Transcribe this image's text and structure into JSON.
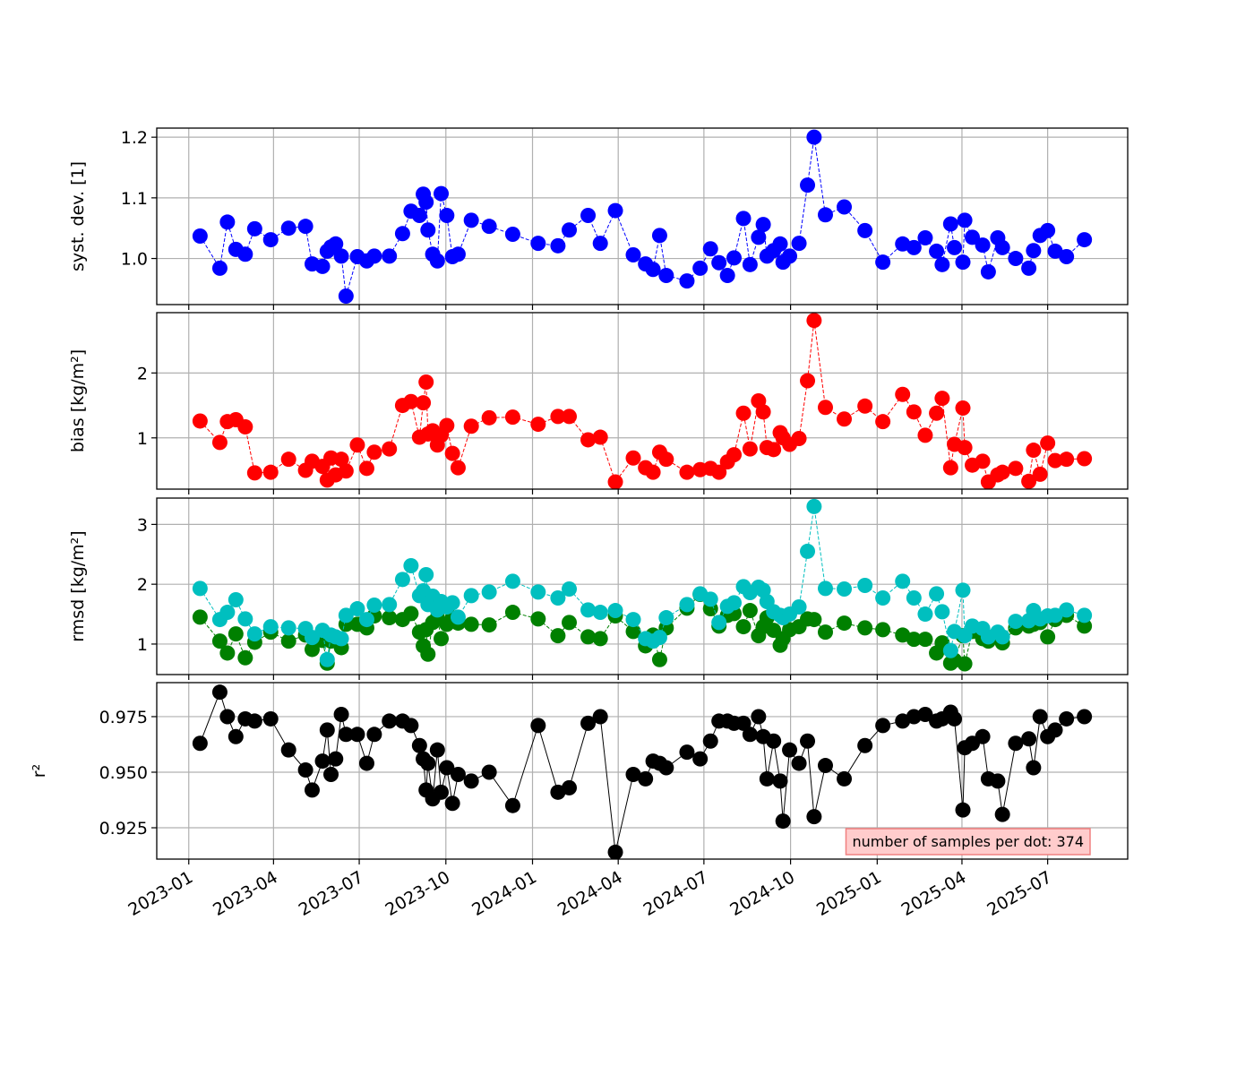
{
  "chart_data": [
    {
      "type": "line",
      "ylabel": "syst. dev. [1]",
      "ylim": [
        0.924,
        1.215
      ],
      "yticks": [
        {
          "value": 1,
          "label": "1.0"
        },
        1.1,
        1.2
      ],
      "grid": true,
      "series": [
        {
          "color": "#0000ff",
          "linestyle": "dashed",
          "values": [
            1.037,
            0.984,
            1.06,
            1.015,
            1.007,
            1.049,
            1.031,
            1.05,
            1.053,
            0.991,
            0.987,
            1.012,
            1.019,
            1.024,
            1.004,
            0.938,
            1.003,
            0.996,
            1.004,
            1.004,
            1.041,
            1.078,
            1.071,
            1.106,
            1.093,
            1.047,
            1.007,
            0.996,
            1.107,
            1.071,
            1.003,
            1.007,
            1.063,
            1.053,
            1.04,
            1.025,
            1.021,
            1.047,
            1.071,
            1.025,
            1.079,
            1.006,
            0.991,
            0.982,
            1.038,
            0.972,
            0.963,
            0.984,
            1.016,
            0.993,
            0.972,
            1.001,
            1.066,
            0.99,
            1.035,
            1.056,
            1.004,
            1.013,
            1.024,
            0.994,
            1.004,
            1.025,
            1.121,
            1.2,
            1.072,
            1.085,
            1.046,
            0.994,
            1.024,
            1.018,
            1.034,
            1.012,
            0.99,
            1.057,
            1.018,
            0.994,
            1.063,
            1.035,
            1.022,
            0.978,
            1.034,
            1.018,
            1.0,
            0.984,
            1.013,
            1.038,
            1.046,
            1.012,
            1.003,
            1.031
          ]
        }
      ]
    },
    {
      "type": "line",
      "ylabel": "bias [kg/m²]",
      "ylim": [
        0.21,
        2.93
      ],
      "yticks": [
        1,
        2
      ],
      "grid": true,
      "series": [
        {
          "color": "#ff0000",
          "linestyle": "dashed",
          "values": [
            1.26,
            0.93,
            1.25,
            1.28,
            1.17,
            0.46,
            0.47,
            0.67,
            0.5,
            0.64,
            0.56,
            0.35,
            0.69,
            0.43,
            0.67,
            0.49,
            0.89,
            0.53,
            0.78,
            0.83,
            1.5,
            1.56,
            1.01,
            1.54,
            1.86,
            1.06,
            1.11,
            0.89,
            1.04,
            1.19,
            0.76,
            0.54,
            1.18,
            1.31,
            1.32,
            1.21,
            1.33,
            1.33,
            0.97,
            1.01,
            0.32,
            0.69,
            0.54,
            0.47,
            0.78,
            0.67,
            0.47,
            0.51,
            0.53,
            0.47,
            0.63,
            0.74,
            1.38,
            0.83,
            1.57,
            1.4,
            0.85,
            0.82,
            1.08,
            1.0,
            0.9,
            0.99,
            1.88,
            2.81,
            1.47,
            1.29,
            1.49,
            1.25,
            1.67,
            1.4,
            1.04,
            1.38,
            1.61,
            0.54,
            0.9,
            1.46,
            0.85,
            0.58,
            0.64,
            0.32,
            0.43,
            0.47,
            0.53,
            0.33,
            0.81,
            0.44,
            0.92,
            0.65,
            0.67,
            0.68
          ]
        }
      ]
    },
    {
      "type": "line",
      "ylabel": "rmsd [kg/m²]",
      "ylim": [
        0.49,
        3.44
      ],
      "yticks": [
        1,
        2,
        3
      ],
      "grid": true,
      "series": [
        {
          "color": "#008000",
          "linestyle": "dashed",
          "values": [
            1.45,
            1.05,
            0.85,
            1.17,
            0.77,
            1.03,
            1.2,
            1.05,
            1.15,
            0.91,
            1.06,
            0.68,
            1.05,
            1.08,
            0.94,
            1.33,
            1.33,
            1.27,
            1.47,
            1.44,
            1.41,
            1.51,
            1.2,
            0.97,
            1.24,
            0.83,
            1.36,
            1.44,
            1.09,
            1.33,
            1.44,
            1.35,
            1.33,
            1.32,
            1.53,
            1.42,
            1.14,
            1.36,
            1.12,
            1.09,
            1.47,
            1.21,
            0.97,
            1.15,
            0.74,
            1.27,
            1.6,
            1.83,
            1.59,
            1.3,
            1.48,
            1.51,
            1.29,
            1.56,
            1.14,
            1.29,
            1.44,
            1.23,
            0.98,
            1.09,
            1.24,
            1.29,
            1.42,
            1.41,
            1.2,
            1.35,
            1.27,
            1.24,
            1.15,
            1.08,
            1.08,
            0.85,
            1.02,
            0.68,
            0.73,
            1.14,
            0.67,
            1.21,
            1.09,
            1.05,
            1.14,
            1.02,
            1.27,
            1.3,
            1.33,
            1.36,
            1.12,
            1.41,
            1.48,
            1.3
          ]
        },
        {
          "color": "#00bfbf",
          "linestyle": "dashed",
          "values": [
            1.93,
            1.41,
            1.53,
            1.74,
            1.42,
            1.17,
            1.29,
            1.27,
            1.26,
            1.11,
            1.23,
            0.74,
            1.15,
            1.12,
            1.09,
            1.48,
            1.59,
            1.41,
            1.65,
            1.66,
            2.08,
            2.31,
            1.81,
            1.89,
            2.16,
            1.66,
            1.8,
            1.57,
            1.71,
            1.62,
            1.69,
            1.45,
            1.81,
            1.87,
            2.05,
            1.87,
            1.77,
            1.92,
            1.57,
            1.53,
            1.56,
            1.41,
            1.09,
            1.05,
            1.11,
            1.44,
            1.66,
            1.84,
            1.75,
            1.36,
            1.63,
            1.69,
            1.96,
            1.86,
            1.95,
            1.9,
            1.71,
            1.54,
            1.48,
            1.44,
            1.5,
            1.62,
            2.55,
            3.3,
            1.93,
            1.92,
            1.98,
            1.77,
            2.05,
            1.77,
            1.5,
            1.84,
            1.54,
            0.89,
            1.21,
            1.9,
            1.14,
            1.3,
            1.26,
            1.12,
            1.2,
            1.12,
            1.38,
            1.39,
            1.56,
            1.42,
            1.47,
            1.48,
            1.57,
            1.48
          ]
        }
      ]
    },
    {
      "type": "line",
      "ylabel": "r²",
      "ylim": [
        0.9109,
        0.9903
      ],
      "yticks": [
        0.925,
        {
          "value": 0.95,
          "label": "0.950"
        },
        0.975
      ],
      "grid": true,
      "annotation": "number of samples per dot: 374",
      "xlim": [
        "2022-11-28",
        "2025-09-24"
      ],
      "xticks": [
        "2023-01",
        "2023-04",
        "2023-07",
        "2023-10",
        "2024-01",
        "2024-04",
        "2024-07",
        "2024-10",
        "2025-01",
        "2025-04",
        "2025-07"
      ],
      "x": [
        "2023-01-13",
        "2023-02-03",
        "2023-02-11",
        "2023-02-20",
        "2023-03-02",
        "2023-03-12",
        "2023-03-29",
        "2023-04-17",
        "2023-05-05",
        "2023-05-12",
        "2023-05-23",
        "2023-05-28",
        "2023-06-01",
        "2023-06-06",
        "2023-06-12",
        "2023-06-17",
        "2023-06-29",
        "2023-07-09",
        "2023-07-17",
        "2023-08-02",
        "2023-08-16",
        "2023-08-25",
        "2023-09-03",
        "2023-09-07",
        "2023-09-10",
        "2023-09-12",
        "2023-09-17",
        "2023-09-22",
        "2023-09-26",
        "2023-10-02",
        "2023-10-08",
        "2023-10-14",
        "2023-10-28",
        "2023-11-16",
        "2023-12-11",
        "2024-01-07",
        "2024-01-28",
        "2024-02-09",
        "2024-02-29",
        "2024-03-13",
        "2024-03-29",
        "2024-04-17",
        "2024-04-30",
        "2024-05-08",
        "2024-05-15",
        "2024-05-22",
        "2024-06-13",
        "2024-06-27",
        "2024-07-08",
        "2024-07-17",
        "2024-07-26",
        "2024-08-02",
        "2024-08-12",
        "2024-08-19",
        "2024-08-28",
        "2024-09-02",
        "2024-09-06",
        "2024-09-13",
        "2024-09-20",
        "2024-09-23",
        "2024-09-30",
        "2024-10-10",
        "2024-10-19",
        "2024-10-26",
        "2024-11-07",
        "2024-11-27",
        "2024-12-19",
        "2025-01-07",
        "2025-01-28",
        "2025-02-09",
        "2025-02-21",
        "2025-03-05",
        "2025-03-11",
        "2025-03-20",
        "2025-03-24",
        "2025-04-02",
        "2025-04-04",
        "2025-04-12",
        "2025-04-23",
        "2025-04-29",
        "2025-05-09",
        "2025-05-14",
        "2025-05-28",
        "2025-06-11",
        "2025-06-16",
        "2025-06-23",
        "2025-07-01",
        "2025-07-09",
        "2025-07-21",
        "2025-08-09"
      ],
      "series": [
        {
          "color": "#000000",
          "linestyle": "solid",
          "values": [
            0.963,
            0.986,
            0.975,
            0.966,
            0.974,
            0.973,
            0.974,
            0.96,
            0.951,
            0.942,
            0.955,
            0.969,
            0.949,
            0.956,
            0.976,
            0.967,
            0.967,
            0.954,
            0.967,
            0.973,
            0.973,
            0.971,
            0.962,
            0.956,
            0.942,
            0.954,
            0.938,
            0.96,
            0.941,
            0.952,
            0.936,
            0.949,
            0.946,
            0.95,
            0.935,
            0.971,
            0.941,
            0.943,
            0.972,
            0.975,
            0.914,
            0.949,
            0.947,
            0.955,
            0.954,
            0.952,
            0.959,
            0.956,
            0.964,
            0.973,
            0.973,
            0.972,
            0.972,
            0.967,
            0.975,
            0.966,
            0.947,
            0.964,
            0.946,
            0.928,
            0.96,
            0.954,
            0.964,
            0.93,
            0.953,
            0.947,
            0.962,
            0.971,
            0.973,
            0.975,
            0.976,
            0.973,
            0.974,
            0.977,
            0.974,
            0.933,
            0.961,
            0.963,
            0.966,
            0.947,
            0.946,
            0.931,
            0.963,
            0.965,
            0.952,
            0.975,
            0.966,
            0.969,
            0.974,
            0.975
          ]
        }
      ]
    }
  ]
}
